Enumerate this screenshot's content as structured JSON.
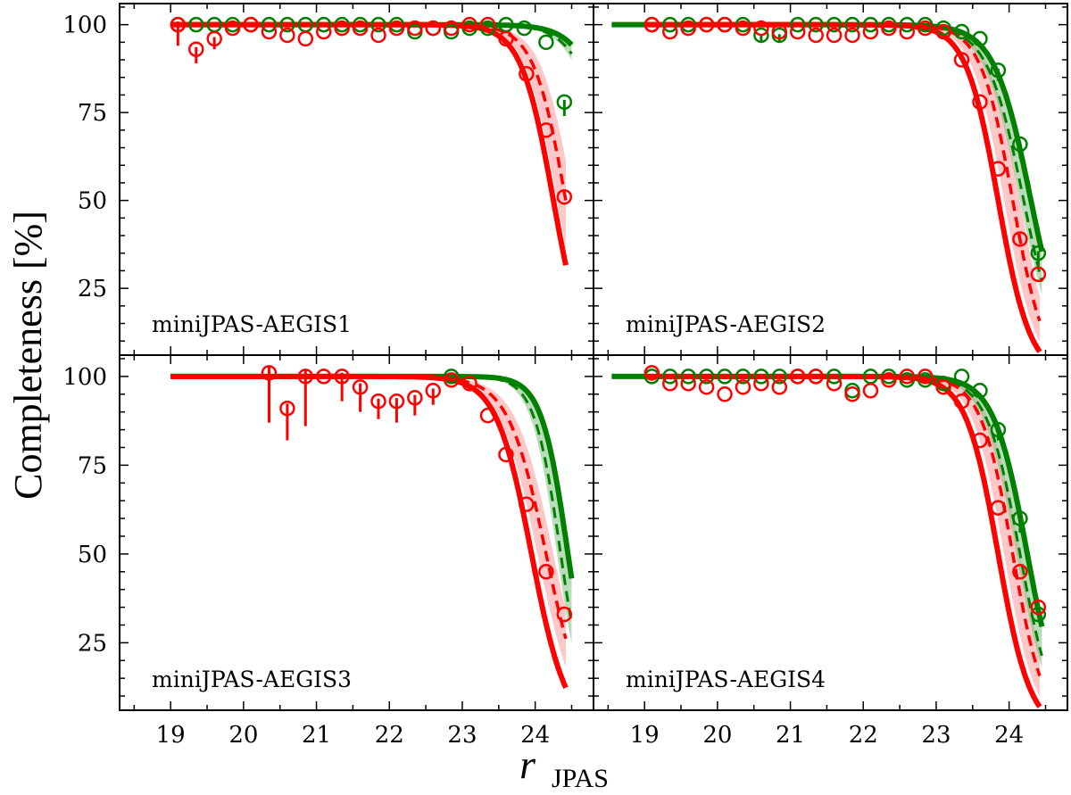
{
  "chart_data": {
    "type": "scatter",
    "ylabel": "Completeness [%]",
    "xlabel": "r",
    "xlabel_subscript": "JPAS",
    "xlim": [
      18.3,
      24.8
    ],
    "ylim": [
      6,
      106
    ],
    "xticks": [
      "19",
      "20",
      "21",
      "22",
      "23",
      "24"
    ],
    "yticks": [
      "25",
      "50",
      "75",
      "100"
    ],
    "colors": {
      "green": "#008000",
      "red": "#ff0000",
      "green_band": "#80c080",
      "red_band": "#ff9a9a",
      "axis": "#000000"
    },
    "panels": [
      {
        "label": "miniJPAS-AEGIS1",
        "green_curve": {
          "x_start": 19.0,
          "x_end": 24.5,
          "m50": 25.2,
          "width": 0.25
        },
        "red_curve": {
          "x_start": 19.0,
          "x_end": 24.42,
          "m50": 24.25,
          "width": 0.22
        },
        "red_dashed_curve": {
          "x_start": 19.0,
          "x_end": 24.42,
          "m50": 24.42,
          "width": 0.22
        },
        "green_points": [
          {
            "x": 19.1,
            "y": 100
          },
          {
            "x": 19.35,
            "y": 100
          },
          {
            "x": 19.6,
            "y": 100
          },
          {
            "x": 19.85,
            "y": 100
          },
          {
            "x": 20.1,
            "y": 100
          },
          {
            "x": 20.35,
            "y": 100
          },
          {
            "x": 20.6,
            "y": 100
          },
          {
            "x": 20.85,
            "y": 100
          },
          {
            "x": 21.1,
            "y": 100
          },
          {
            "x": 21.35,
            "y": 100
          },
          {
            "x": 21.6,
            "y": 100
          },
          {
            "x": 21.85,
            "y": 100
          },
          {
            "x": 22.1,
            "y": 100
          },
          {
            "x": 22.35,
            "y": 98
          },
          {
            "x": 22.6,
            "y": 99
          },
          {
            "x": 22.85,
            "y": 98
          },
          {
            "x": 23.1,
            "y": 99
          },
          {
            "x": 23.35,
            "y": 99
          },
          {
            "x": 23.6,
            "y": 100
          },
          {
            "x": 23.85,
            "y": 99
          },
          {
            "x": 24.15,
            "y": 95
          },
          {
            "x": 24.4,
            "y": 78,
            "err": 4
          }
        ],
        "red_points": [
          {
            "x": 19.1,
            "y": 100,
            "err": 6
          },
          {
            "x": 19.35,
            "y": 93,
            "err": 4
          },
          {
            "x": 19.6,
            "y": 96,
            "err": 3
          },
          {
            "x": 19.85,
            "y": 99
          },
          {
            "x": 20.1,
            "y": 100
          },
          {
            "x": 20.35,
            "y": 98
          },
          {
            "x": 20.6,
            "y": 97
          },
          {
            "x": 20.85,
            "y": 96
          },
          {
            "x": 21.1,
            "y": 98
          },
          {
            "x": 21.35,
            "y": 99
          },
          {
            "x": 21.6,
            "y": 99
          },
          {
            "x": 21.85,
            "y": 97
          },
          {
            "x": 22.1,
            "y": 99
          },
          {
            "x": 22.35,
            "y": 99
          },
          {
            "x": 22.6,
            "y": 99
          },
          {
            "x": 22.85,
            "y": 99
          },
          {
            "x": 23.1,
            "y": 100
          },
          {
            "x": 23.35,
            "y": 100
          },
          {
            "x": 23.6,
            "y": 96
          },
          {
            "x": 23.88,
            "y": 86
          },
          {
            "x": 24.15,
            "y": 70
          },
          {
            "x": 24.4,
            "y": 51
          }
        ]
      },
      {
        "label": "miniJPAS-AEGIS2",
        "green_curve": {
          "x_start": 18.55,
          "x_end": 24.45,
          "m50": 24.3,
          "width": 0.25
        },
        "red_curve": {
          "x_start": 19.0,
          "x_end": 24.42,
          "m50": 23.85,
          "width": 0.22
        },
        "red_dashed_curve": {
          "x_start": 19.0,
          "x_end": 24.42,
          "m50": 24.05,
          "width": 0.22
        },
        "green_points": [
          {
            "x": 19.1,
            "y": 100
          },
          {
            "x": 19.35,
            "y": 100
          },
          {
            "x": 19.6,
            "y": 100
          },
          {
            "x": 19.85,
            "y": 100
          },
          {
            "x": 20.1,
            "y": 100
          },
          {
            "x": 20.35,
            "y": 100
          },
          {
            "x": 20.6,
            "y": 97,
            "err": 2
          },
          {
            "x": 20.85,
            "y": 97,
            "err": 2
          },
          {
            "x": 21.1,
            "y": 100
          },
          {
            "x": 21.35,
            "y": 100
          },
          {
            "x": 21.6,
            "y": 100
          },
          {
            "x": 21.85,
            "y": 100
          },
          {
            "x": 22.1,
            "y": 100
          },
          {
            "x": 22.35,
            "y": 100
          },
          {
            "x": 22.6,
            "y": 100
          },
          {
            "x": 22.85,
            "y": 100
          },
          {
            "x": 23.1,
            "y": 99
          },
          {
            "x": 23.35,
            "y": 98
          },
          {
            "x": 23.6,
            "y": 96
          },
          {
            "x": 23.85,
            "y": 87,
            "err": 3
          },
          {
            "x": 24.15,
            "y": 66,
            "err": 4
          },
          {
            "x": 24.4,
            "y": 35,
            "err": 4
          }
        ],
        "red_points": [
          {
            "x": 19.1,
            "y": 100
          },
          {
            "x": 19.35,
            "y": 98
          },
          {
            "x": 19.6,
            "y": 99
          },
          {
            "x": 19.85,
            "y": 100
          },
          {
            "x": 20.1,
            "y": 100
          },
          {
            "x": 20.35,
            "y": 99
          },
          {
            "x": 20.6,
            "y": 99
          },
          {
            "x": 20.85,
            "y": 98
          },
          {
            "x": 21.1,
            "y": 98
          },
          {
            "x": 21.35,
            "y": 97
          },
          {
            "x": 21.6,
            "y": 97
          },
          {
            "x": 21.85,
            "y": 97
          },
          {
            "x": 22.1,
            "y": 98
          },
          {
            "x": 22.35,
            "y": 99
          },
          {
            "x": 22.6,
            "y": 98
          },
          {
            "x": 22.85,
            "y": 99
          },
          {
            "x": 23.1,
            "y": 98
          },
          {
            "x": 23.35,
            "y": 90
          },
          {
            "x": 23.6,
            "y": 78
          },
          {
            "x": 23.85,
            "y": 59
          },
          {
            "x": 24.15,
            "y": 39
          },
          {
            "x": 24.4,
            "y": 29
          }
        ]
      },
      {
        "label": "miniJPAS-AEGIS3",
        "green_curve": {
          "x_start": 19.0,
          "x_end": 24.5,
          "m50": 24.45,
          "width": 0.18
        },
        "red_curve": {
          "x_start": 19.0,
          "x_end": 24.42,
          "m50": 23.95,
          "width": 0.24
        },
        "red_dashed_curve": {
          "x_start": 19.0,
          "x_end": 24.42,
          "m50": 24.15,
          "width": 0.26
        },
        "green_points": [
          {
            "x": 22.85,
            "y": 100
          }
        ],
        "red_points": [
          {
            "x": 20.35,
            "y": 101,
            "err": 14
          },
          {
            "x": 20.6,
            "y": 91,
            "err": 9
          },
          {
            "x": 20.85,
            "y": 100,
            "err": 14
          },
          {
            "x": 21.1,
            "y": 100
          },
          {
            "x": 21.35,
            "y": 100,
            "err": 7
          },
          {
            "x": 21.6,
            "y": 97,
            "err": 7
          },
          {
            "x": 21.85,
            "y": 93,
            "err": 5
          },
          {
            "x": 22.1,
            "y": 93,
            "err": 6
          },
          {
            "x": 22.35,
            "y": 94,
            "err": 5
          },
          {
            "x": 22.6,
            "y": 96,
            "err": 4
          },
          {
            "x": 22.85,
            "y": 99
          },
          {
            "x": 23.1,
            "y": 98
          },
          {
            "x": 23.35,
            "y": 89
          },
          {
            "x": 23.6,
            "y": 78
          },
          {
            "x": 23.88,
            "y": 64
          },
          {
            "x": 24.15,
            "y": 45
          },
          {
            "x": 24.4,
            "y": 33
          }
        ]
      },
      {
        "label": "miniJPAS-AEGIS4",
        "green_curve": {
          "x_start": 18.55,
          "x_end": 24.45,
          "m50": 24.25,
          "width": 0.23
        },
        "red_curve": {
          "x_start": 19.0,
          "x_end": 24.42,
          "m50": 23.85,
          "width": 0.22
        },
        "red_dashed_curve": {
          "x_start": 19.0,
          "x_end": 24.42,
          "m50": 24.05,
          "width": 0.22
        },
        "green_points": [
          {
            "x": 19.1,
            "y": 100
          },
          {
            "x": 19.35,
            "y": 100
          },
          {
            "x": 19.6,
            "y": 100
          },
          {
            "x": 19.85,
            "y": 100
          },
          {
            "x": 20.1,
            "y": 100
          },
          {
            "x": 20.35,
            "y": 100
          },
          {
            "x": 20.6,
            "y": 100
          },
          {
            "x": 20.85,
            "y": 100
          },
          {
            "x": 21.1,
            "y": 100
          },
          {
            "x": 21.35,
            "y": 100
          },
          {
            "x": 21.6,
            "y": 100
          },
          {
            "x": 21.85,
            "y": 96
          },
          {
            "x": 22.1,
            "y": 100
          },
          {
            "x": 22.35,
            "y": 100
          },
          {
            "x": 22.6,
            "y": 99
          },
          {
            "x": 22.85,
            "y": 99
          },
          {
            "x": 23.1,
            "y": 98
          },
          {
            "x": 23.35,
            "y": 100
          },
          {
            "x": 23.6,
            "y": 96
          },
          {
            "x": 23.85,
            "y": 85,
            "err": 3
          },
          {
            "x": 24.15,
            "y": 60,
            "err": 4
          },
          {
            "x": 24.4,
            "y": 33
          }
        ],
        "red_points": [
          {
            "x": 19.1,
            "y": 101
          },
          {
            "x": 19.35,
            "y": 98
          },
          {
            "x": 19.6,
            "y": 98
          },
          {
            "x": 19.85,
            "y": 97
          },
          {
            "x": 20.1,
            "y": 95
          },
          {
            "x": 20.35,
            "y": 97
          },
          {
            "x": 20.6,
            "y": 98
          },
          {
            "x": 20.85,
            "y": 97
          },
          {
            "x": 21.1,
            "y": 100
          },
          {
            "x": 21.35,
            "y": 100
          },
          {
            "x": 21.6,
            "y": 98
          },
          {
            "x": 21.85,
            "y": 95
          },
          {
            "x": 22.1,
            "y": 96
          },
          {
            "x": 22.35,
            "y": 99
          },
          {
            "x": 22.6,
            "y": 100
          },
          {
            "x": 22.85,
            "y": 100
          },
          {
            "x": 23.1,
            "y": 97
          },
          {
            "x": 23.35,
            "y": 93
          },
          {
            "x": 23.6,
            "y": 82
          },
          {
            "x": 23.85,
            "y": 63
          },
          {
            "x": 24.15,
            "y": 45
          },
          {
            "x": 24.4,
            "y": 35
          }
        ]
      }
    ]
  }
}
